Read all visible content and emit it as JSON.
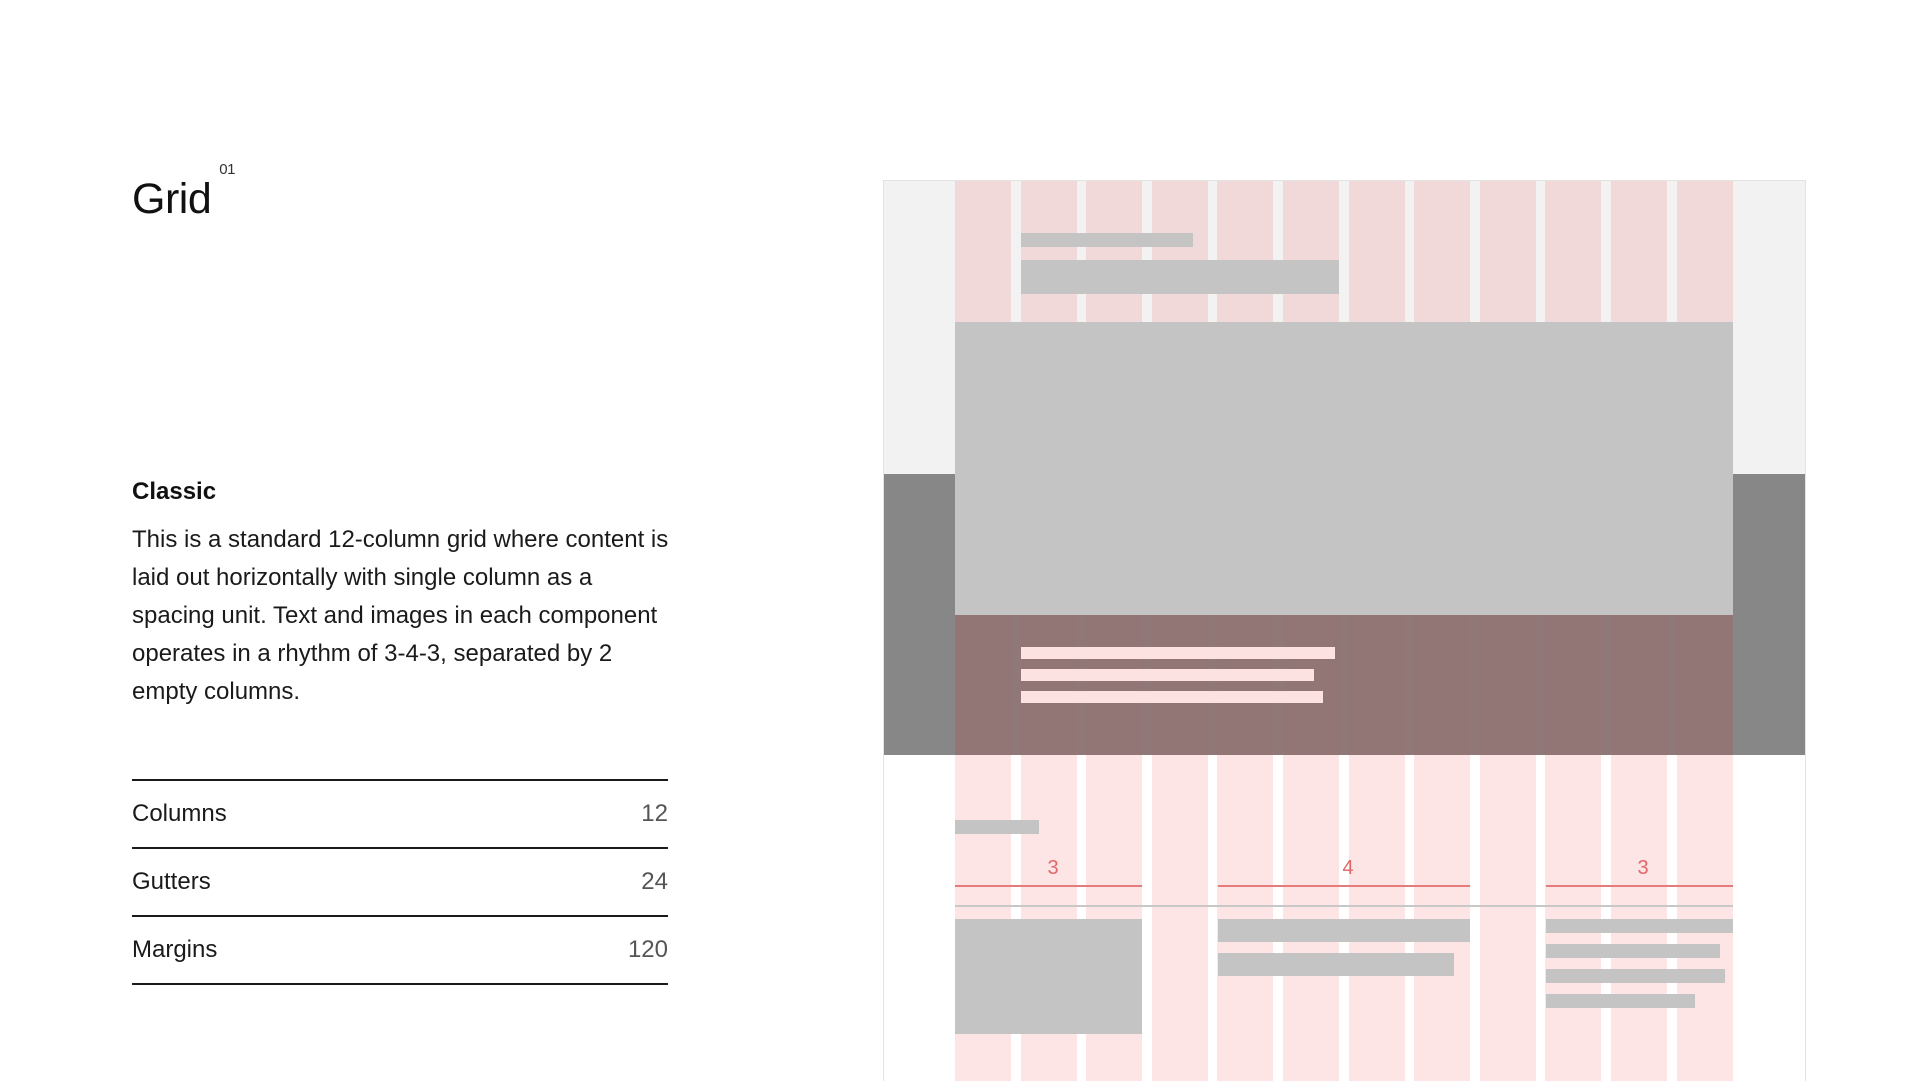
{
  "header": {
    "title": "Grid",
    "superscript": "01"
  },
  "section": {
    "subtitle": "Classic",
    "description": "This is a standard 12-column grid where content is laid out horizontally with single column as a spacing unit. Text and images in each component operates in a rhythm of 3-4-3, separated by 2 empty columns."
  },
  "specs": [
    {
      "label": "Columns",
      "value": "12"
    },
    {
      "label": "Gutters",
      "value": "24"
    },
    {
      "label": "Margins",
      "value": "120"
    }
  ],
  "diagram": {
    "span_labels": [
      "3",
      "4",
      "3"
    ],
    "colors": {
      "column": "#fde4e5",
      "column_top": "#f2d9d9",
      "placeholder": "#c4c4c4",
      "dark_band": "#878787",
      "accent": "#e57c7c"
    }
  }
}
